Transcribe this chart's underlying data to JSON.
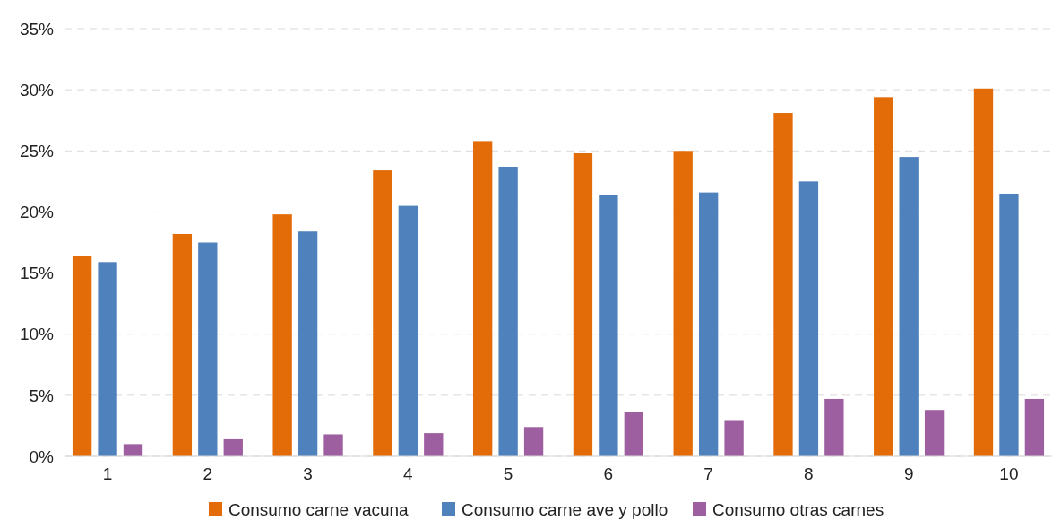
{
  "chart_data": {
    "type": "bar",
    "categories": [
      "1",
      "2",
      "3",
      "4",
      "5",
      "6",
      "7",
      "8",
      "9",
      "10"
    ],
    "series": [
      {
        "name": "Consumo carne vacuna",
        "color": "#e36c09",
        "values": [
          16.4,
          18.2,
          19.8,
          23.4,
          25.8,
          24.8,
          25.0,
          28.1,
          29.4,
          30.1
        ]
      },
      {
        "name": "Consumo carne ave y pollo",
        "color": "#4f81bd",
        "values": [
          15.9,
          17.5,
          18.4,
          20.5,
          23.7,
          21.4,
          21.6,
          22.5,
          24.5,
          21.5
        ]
      },
      {
        "name": "Consumo otras carnes",
        "color": "#9e5fa0",
        "values": [
          1.0,
          1.4,
          1.8,
          1.9,
          2.4,
          3.6,
          2.9,
          4.7,
          3.8,
          4.7
        ]
      }
    ],
    "ylim": [
      0,
      35
    ],
    "yticks": [
      {
        "value": 0,
        "label": "0%"
      },
      {
        "value": 5,
        "label": "5%"
      },
      {
        "value": 10,
        "label": "10%"
      },
      {
        "value": 15,
        "label": "15%"
      },
      {
        "value": 20,
        "label": "20%"
      },
      {
        "value": 25,
        "label": "25%"
      },
      {
        "value": 30,
        "label": "30%"
      },
      {
        "value": 35,
        "label": "35%"
      }
    ],
    "grid": "y",
    "legend": "bottom"
  }
}
